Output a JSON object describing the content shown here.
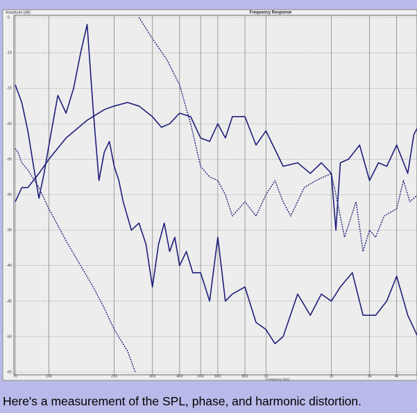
{
  "chart_data": {
    "type": "line",
    "title": "Frequency Response",
    "ylabel": "Amplitude [dB]",
    "xlabel": "Frequency [Hz]",
    "caption": "Here's a measurement of the SPL, phase, and harmonic distortion.",
    "xlog": true,
    "grid": true,
    "xlim": [
      70,
      5000
    ],
    "ylim": [
      -55,
      -5
    ],
    "xticks": [
      70,
      100,
      200,
      300,
      400,
      500,
      600,
      800,
      {
        "value": 1000,
        "label": "1k"
      },
      {
        "value": 2000,
        "label": "2k"
      },
      {
        "value": 3000,
        "label": "3k"
      },
      {
        "value": 4000,
        "label": "4k"
      }
    ],
    "yticks": [
      -5,
      -10,
      -15,
      -20,
      -25,
      -30,
      -35,
      -40,
      -45,
      -50,
      -55
    ],
    "series": [
      {
        "color": "#1c1c7a",
        "dashed": false,
        "x": [
          70,
          75,
          80,
          85,
          90,
          95,
          100,
          110,
          120,
          130,
          140,
          150,
          160,
          170,
          180,
          190,
          200,
          210,
          220,
          240,
          260,
          280,
          300,
          320,
          340,
          360,
          380,
          400,
          430,
          460,
          500,
          550,
          600,
          650,
          700,
          800,
          900,
          1000,
          1100,
          1200,
          1400,
          1600,
          1800,
          2000,
          2200,
          2500,
          2800,
          3200,
          3600,
          4000,
          4500,
          5000
        ],
        "values": [
          -14.5,
          -17,
          -21,
          -26,
          -30.5,
          -27,
          -23,
          -16,
          -18.5,
          -15,
          -10,
          -6,
          -18,
          -28,
          -24,
          -22.5,
          -26,
          -28,
          -31,
          -35,
          -34,
          -37,
          -43,
          -37,
          -34,
          -38,
          -36,
          -40,
          -38,
          -41,
          -41,
          -45,
          -36,
          -45,
          -44,
          -43,
          -48,
          -49,
          -51,
          -50,
          -44,
          -47,
          -44,
          -45,
          -43,
          -41,
          -47,
          -47,
          -45,
          -41.5,
          -47,
          -50
        ]
      },
      {
        "color": "#1c1c7a",
        "dashed": false,
        "x": [
          70,
          75,
          80,
          90,
          100,
          120,
          150,
          180,
          200,
          230,
          260,
          300,
          330,
          360,
          400,
          450,
          500,
          550,
          600,
          650,
          700,
          800,
          900,
          1000,
          1200,
          1400,
          1600,
          1800,
          2000,
          2100,
          2200,
          2400,
          2700,
          3000,
          3300,
          3600,
          4000,
          4500,
          4800,
          5000
        ],
        "values": [
          -31,
          -29,
          -29,
          -27,
          -25,
          -22,
          -19.5,
          -18,
          -17.5,
          -17,
          -17.5,
          -19,
          -20.5,
          -20,
          -18.5,
          -19,
          -22,
          -22.5,
          -20,
          -22,
          -19,
          -19,
          -23,
          -21,
          -26,
          -25.5,
          -27,
          -25.5,
          -27,
          -35,
          -25.5,
          -25,
          -23,
          -28,
          -25.5,
          -26,
          -23,
          -27,
          -21.5,
          -20.5
        ]
      },
      {
        "color": "#1c1c7a",
        "dashed": true,
        "x": [
          70,
          72,
          75,
          80,
          90,
          100,
          120,
          140,
          160,
          180,
          200,
          230,
          250
        ],
        "values": [
          -23.5,
          -24,
          -25.5,
          -26.5,
          -29,
          -32,
          -36.5,
          -40,
          -43,
          -46,
          -49,
          -52,
          -55
        ]
      },
      {
        "color": "#1c1c7a",
        "dashed": true,
        "x": [
          260,
          300,
          350,
          400,
          450,
          500,
          550,
          600,
          650,
          700,
          800,
          900,
          1000,
          1100,
          1200,
          1300,
          1500,
          1700,
          2000,
          2100,
          2300,
          2600,
          2800,
          3000,
          3200,
          3500,
          4000,
          4300,
          4600,
          5000
        ],
        "values": [
          -5,
          -8,
          -11,
          -14.5,
          -20,
          -26,
          -27.5,
          -28,
          -30,
          -33,
          -31,
          -33,
          -30,
          -28,
          -31,
          -33,
          -29,
          -28,
          -27,
          -30,
          -36,
          -31,
          -38,
          -35,
          -36,
          -33,
          -32,
          -28,
          -31,
          -30
        ]
      }
    ]
  }
}
